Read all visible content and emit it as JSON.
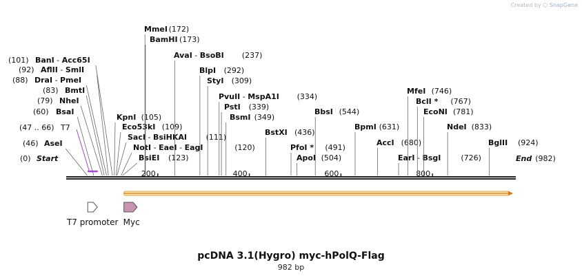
{
  "credit": {
    "prefix": "Created by",
    "brand": "SnapGene"
  },
  "map": {
    "title": "pcDNA 3.1(Hygro) myc-hPolQ-Flag",
    "length_label": "982 bp",
    "length": 982,
    "ticks": [
      "200",
      "400",
      "600",
      "800"
    ],
    "tick_values": [
      200,
      400,
      600,
      800
    ]
  },
  "sites": [
    {
      "pos": 0,
      "name": "Start",
      "pos_text": "(0)",
      "italic": true,
      "side": "right"
    },
    {
      "pos": 46,
      "name": "AseI",
      "pos_text": "(46)",
      "side": "right"
    },
    {
      "pos": 60,
      "name": "BsaI",
      "pos_text": "(60)",
      "side": "right"
    },
    {
      "pos": 79,
      "name": "NheI",
      "pos_text": "(79)",
      "side": "right"
    },
    {
      "pos": 83,
      "name": "BmtI",
      "pos_text": "(83)",
      "side": "right"
    },
    {
      "pos": 88,
      "name": "DraI - PmeI",
      "pos_text": "(88)",
      "side": "right"
    },
    {
      "pos": 92,
      "name": "AflII - SmlI",
      "pos_text": "(92)",
      "side": "right"
    },
    {
      "pos": 101,
      "name": "BanI - Acc65I",
      "pos_text": "(101)",
      "side": "right"
    },
    {
      "pos": 105,
      "name": "KpnI",
      "pos_text": "(105)"
    },
    {
      "pos": 109,
      "name": "Eco53kI",
      "pos_text": "(109)"
    },
    {
      "pos": 111,
      "name": "SacI - BsiHKAI",
      "pos_text": "(111)"
    },
    {
      "pos": 120,
      "name": "NotI - EaeI - EagI",
      "pos_text": "(120)"
    },
    {
      "pos": 123,
      "name": "BsiEI",
      "pos_text": "(123)"
    },
    {
      "pos": 172,
      "name": "MmeI",
      "pos_text": "(172)"
    },
    {
      "pos": 173,
      "name": "BamHI",
      "pos_text": "(173)"
    },
    {
      "pos": 237,
      "name": "AvaI - BsoBI",
      "pos_text": "(237)"
    },
    {
      "pos": 292,
      "name": "BlpI",
      "pos_text": "(292)"
    },
    {
      "pos": 309,
      "name": "StyI",
      "pos_text": "(309)"
    },
    {
      "pos": 334,
      "name": "PvuII - MspA1I",
      "pos_text": "(334)"
    },
    {
      "pos": 339,
      "name": "PstI",
      "pos_text": "(339)"
    },
    {
      "pos": 349,
      "name": "BsmI",
      "pos_text": "(349)"
    },
    {
      "pos": 436,
      "name": "BstXI",
      "pos_text": "(436)"
    },
    {
      "pos": 491,
      "name": "PfoI *",
      "pos_text": "(491)"
    },
    {
      "pos": 504,
      "name": "ApoI",
      "pos_text": "(504)"
    },
    {
      "pos": 544,
      "name": "BbsI",
      "pos_text": "(544)"
    },
    {
      "pos": 631,
      "name": "BpmI",
      "pos_text": "(631)"
    },
    {
      "pos": 680,
      "name": "AccI",
      "pos_text": "(680)"
    },
    {
      "pos": 726,
      "name": "EarI - BsgI",
      "pos_text": "(726)"
    },
    {
      "pos": 746,
      "name": "MfeI",
      "pos_text": "(746)"
    },
    {
      "pos": 767,
      "name": "BclI *",
      "pos_text": "(767)"
    },
    {
      "pos": 781,
      "name": "EcoNI",
      "pos_text": "(781)"
    },
    {
      "pos": 833,
      "name": "NdeI",
      "pos_text": "(833)"
    },
    {
      "pos": 924,
      "name": "BglII",
      "pos_text": "(924)"
    },
    {
      "pos": 982,
      "name": "End",
      "pos_text": "(982)",
      "italic": true
    }
  ],
  "primer": {
    "name": "T7",
    "range_text": "(47 .. 66)",
    "start": 47,
    "end": 66,
    "color": "#a845d6"
  },
  "features": [
    {
      "name": "T7 promoter",
      "start": 47,
      "end": 66,
      "color": "#ffffff"
    },
    {
      "name": "Myc",
      "start": 126,
      "end": 155,
      "color": "#c895b1"
    }
  ],
  "orf": {
    "start": 126,
    "end": 982,
    "color": "#e8a23a"
  },
  "colors": {
    "backbone": "#222222",
    "leader": "#666666",
    "orf_fill": "#fbe3b3",
    "orf_stroke": "#e8a23a"
  }
}
